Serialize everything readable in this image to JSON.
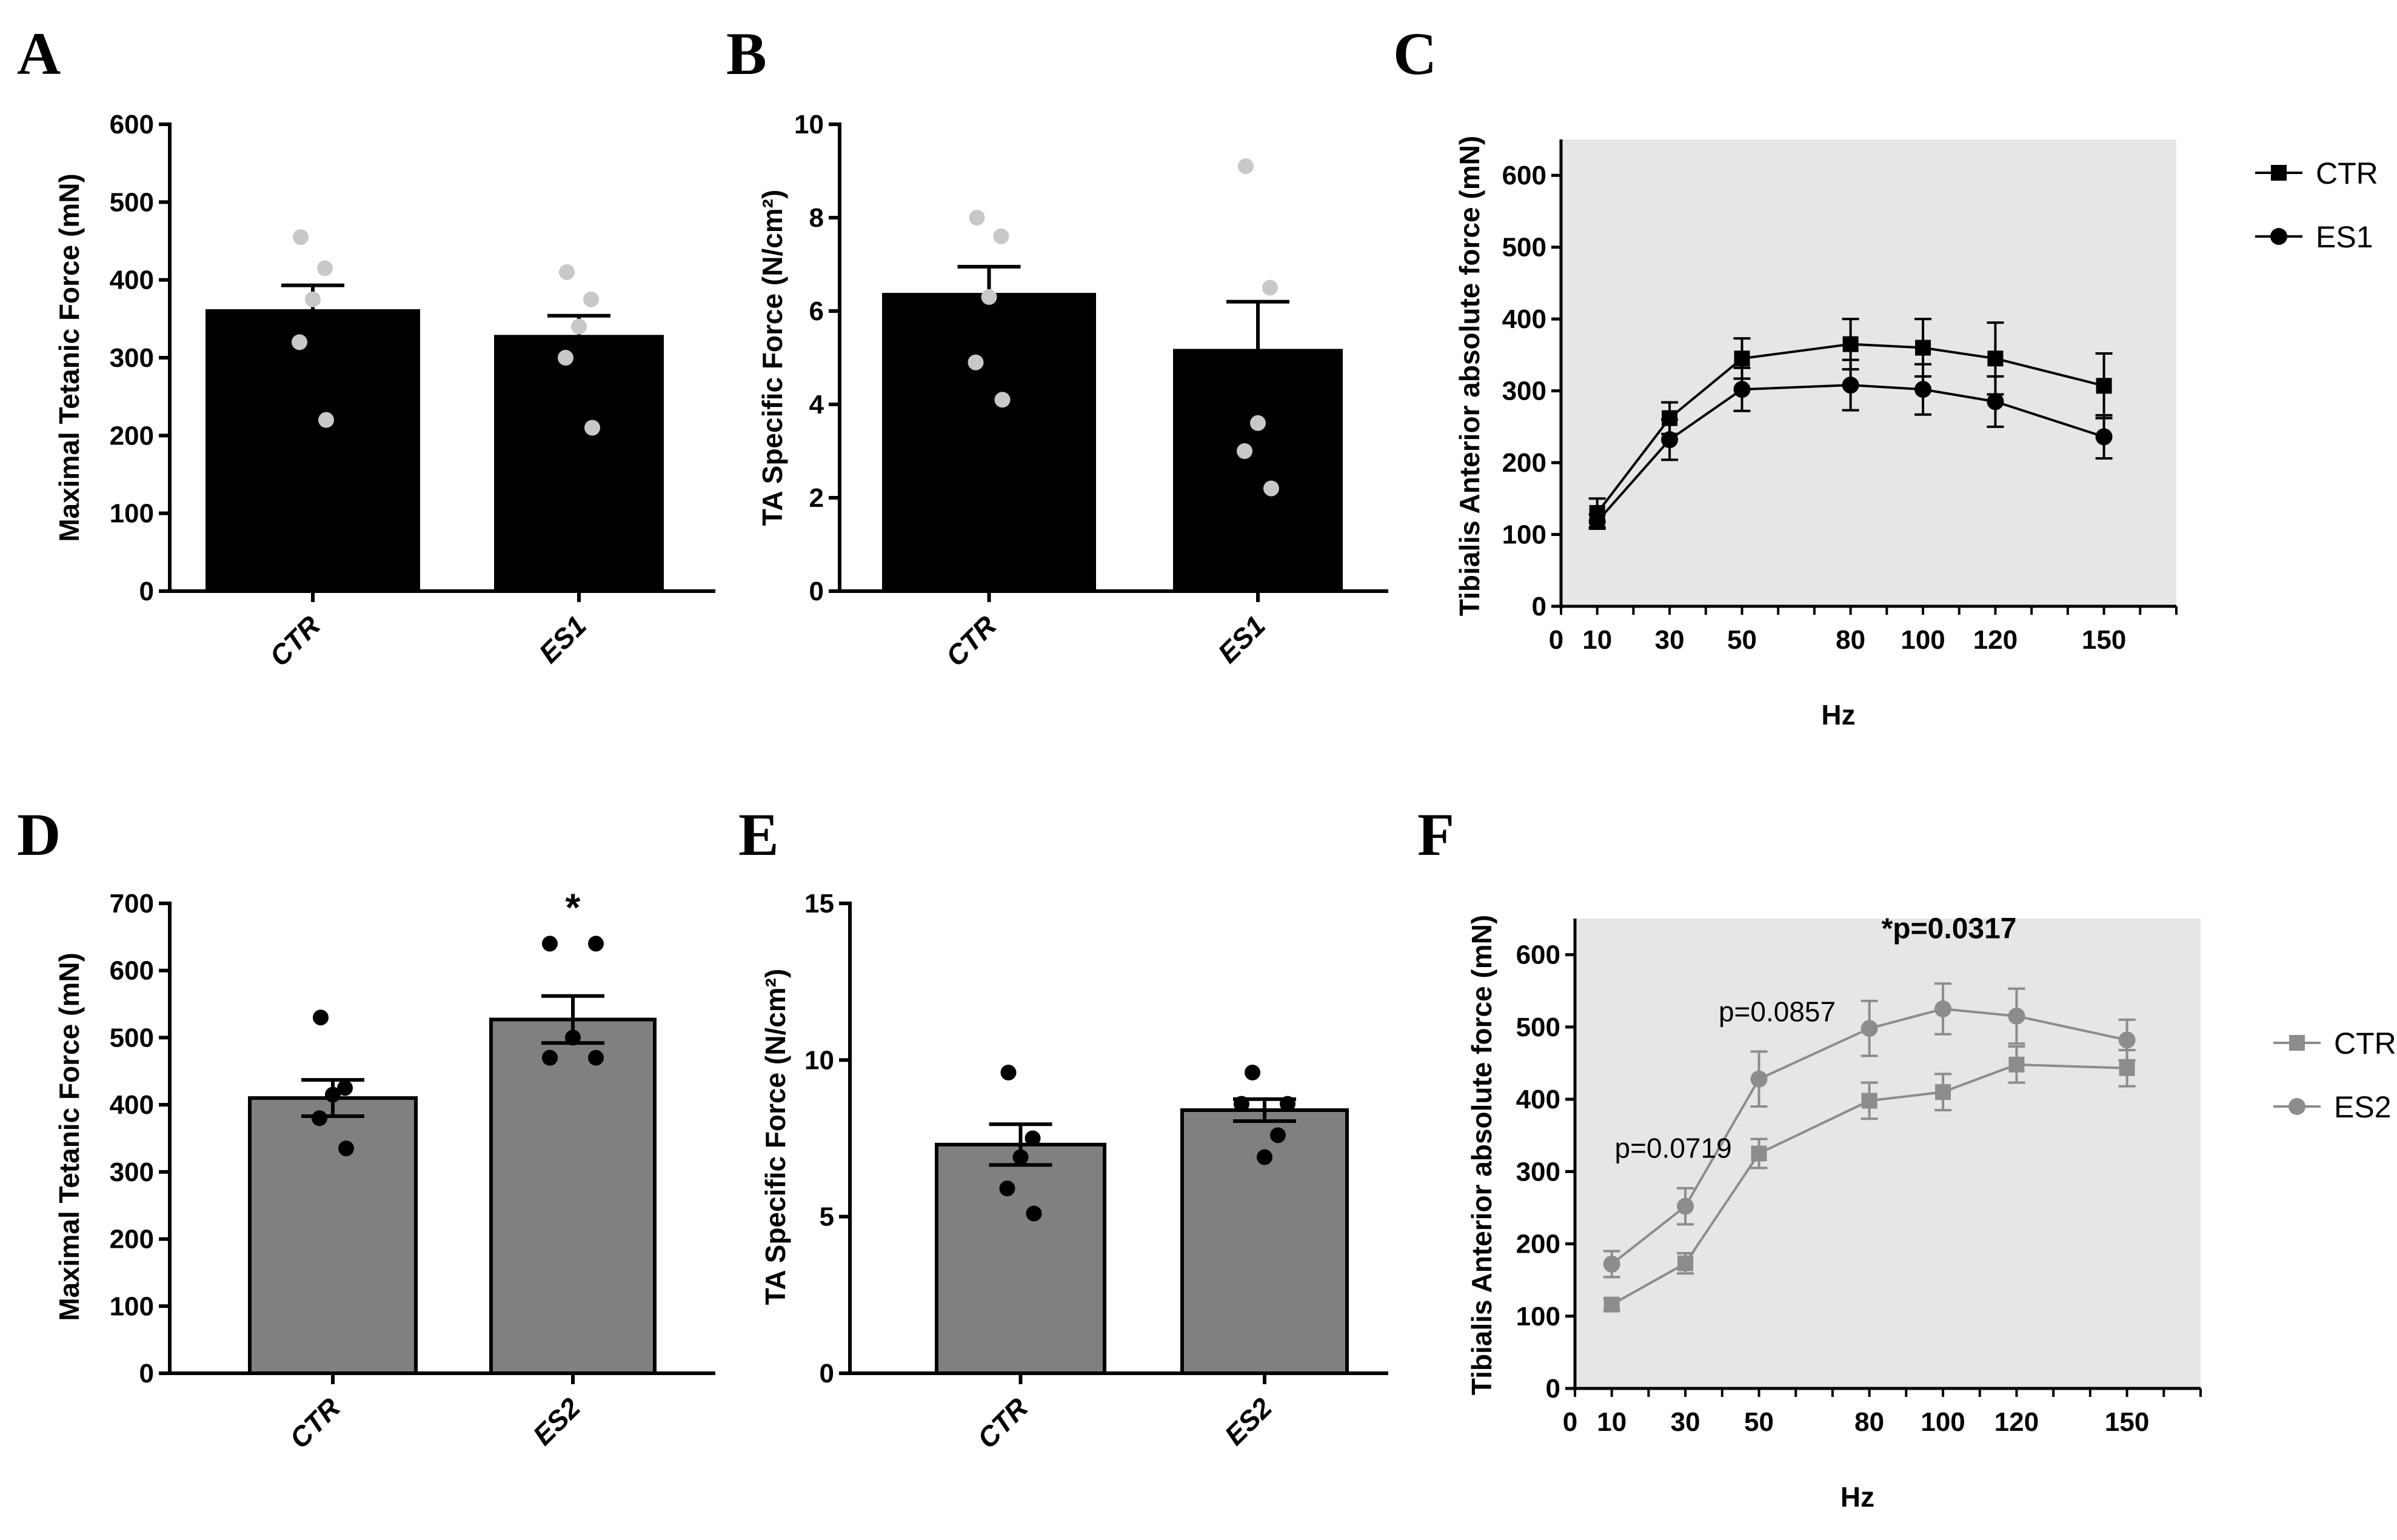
{
  "chart_data": [
    {
      "panel": "A",
      "type": "bar",
      "ylabel": "Maximal Tetanic Force (mN)",
      "ylim": [
        0,
        600
      ],
      "yticks": [
        0,
        100,
        200,
        300,
        400,
        500,
        600
      ],
      "categories": [
        "CTR",
        "ES1"
      ],
      "values": [
        360,
        327
      ],
      "errors": [
        33,
        27
      ],
      "points": [
        [
          455,
          415,
          375,
          320,
          220
        ],
        [
          410,
          375,
          340,
          300,
          210
        ]
      ],
      "bar_color": "#000000",
      "point_color": "#c8c8c8",
      "annotations": []
    },
    {
      "panel": "B",
      "type": "bar",
      "ylabel": "TA Specific Force (N/cm²)",
      "ylim": [
        0,
        10
      ],
      "yticks": [
        0,
        2,
        4,
        6,
        8,
        10
      ],
      "categories": [
        "CTR",
        "ES1"
      ],
      "values": [
        6.35,
        5.15
      ],
      "errors": [
        0.6,
        1.05
      ],
      "points": [
        [
          8.0,
          7.6,
          6.3,
          4.9,
          4.1
        ],
        [
          9.1,
          6.5,
          3.6,
          3.0,
          2.2
        ]
      ],
      "bar_color": "#000000",
      "point_color": "#c8c8c8",
      "annotations": []
    },
    {
      "panel": "C",
      "type": "line",
      "ylabel": "Tibialis Anterior absolute force (mN)",
      "xlabel": "Hz",
      "xlim": [
        0,
        170
      ],
      "ylim": [
        0,
        650
      ],
      "xticks": [
        0,
        10,
        30,
        50,
        80,
        100,
        120,
        150
      ],
      "yticks": [
        0,
        100,
        200,
        300,
        400,
        500,
        600
      ],
      "x": [
        10,
        30,
        50,
        80,
        100,
        120,
        150
      ],
      "series": [
        {
          "name": "CTR",
          "marker": "square",
          "color": "#000000",
          "values": [
            130,
            262,
            345,
            365,
            360,
            345,
            307
          ],
          "errors": [
            20,
            22,
            28,
            35,
            40,
            50,
            45
          ]
        },
        {
          "name": "ES1",
          "marker": "circle",
          "color": "#000000",
          "values": [
            118,
            232,
            302,
            308,
            302,
            285,
            236
          ],
          "errors": [
            10,
            28,
            30,
            35,
            35,
            35,
            30
          ]
        }
      ],
      "background": "#e6e6e6",
      "legend": "right",
      "annotations": []
    },
    {
      "panel": "D",
      "type": "bar",
      "ylabel": "Maximal Tetanic Force (mN)",
      "ylim": [
        0,
        700
      ],
      "yticks": [
        0,
        100,
        200,
        300,
        400,
        500,
        600,
        700
      ],
      "categories": [
        "CTR",
        "ES2"
      ],
      "values": [
        410,
        527
      ],
      "errors": [
        27,
        35
      ],
      "points": [
        [
          530,
          425,
          415,
          380,
          335
        ],
        [
          640,
          640,
          500,
          470,
          470,
          470
        ]
      ],
      "bar_color": "#808080",
      "point_color": "#000000",
      "annotations": [
        "*"
      ]
    },
    {
      "panel": "E",
      "type": "bar",
      "ylabel": "TA Specific Force (N/cm²)",
      "ylim": [
        0,
        15
      ],
      "yticks": [
        0,
        5,
        10,
        15
      ],
      "categories": [
        "CTR",
        "ES2"
      ],
      "values": [
        7.3,
        8.4
      ],
      "errors": [
        0.65,
        0.35
      ],
      "points": [
        [
          9.6,
          7.5,
          6.9,
          5.9,
          5.1
        ],
        [
          9.6,
          8.6,
          8.6,
          8.6,
          7.6,
          6.9
        ]
      ],
      "bar_color": "#808080",
      "point_color": "#000000",
      "annotations": []
    },
    {
      "panel": "F",
      "type": "line",
      "ylabel": "Tibialis Anterior absolute force (mN)",
      "xlabel": "Hz",
      "xlim": [
        0,
        170
      ],
      "ylim": [
        0,
        650
      ],
      "xticks": [
        0,
        10,
        30,
        50,
        80,
        100,
        120,
        150
      ],
      "yticks": [
        0,
        100,
        200,
        300,
        400,
        500,
        600
      ],
      "x": [
        10,
        30,
        50,
        80,
        100,
        120,
        150
      ],
      "series": [
        {
          "name": "CTR",
          "marker": "square",
          "color": "#8c8c8c",
          "values": [
            116,
            173,
            325,
            398,
            410,
            448,
            443
          ],
          "errors": [
            8,
            14,
            20,
            25,
            25,
            25,
            25
          ]
        },
        {
          "name": "ES2",
          "marker": "circle",
          "color": "#8c8c8c",
          "values": [
            172,
            252,
            428,
            498,
            525,
            515,
            482
          ],
          "errors": [
            18,
            25,
            38,
            38,
            35,
            38,
            28
          ]
        }
      ],
      "background": "#e6e6e6",
      "legend": "right",
      "annotations": [
        "p=0.0719",
        "p=0.0857",
        "*p=0.0317"
      ]
    }
  ]
}
